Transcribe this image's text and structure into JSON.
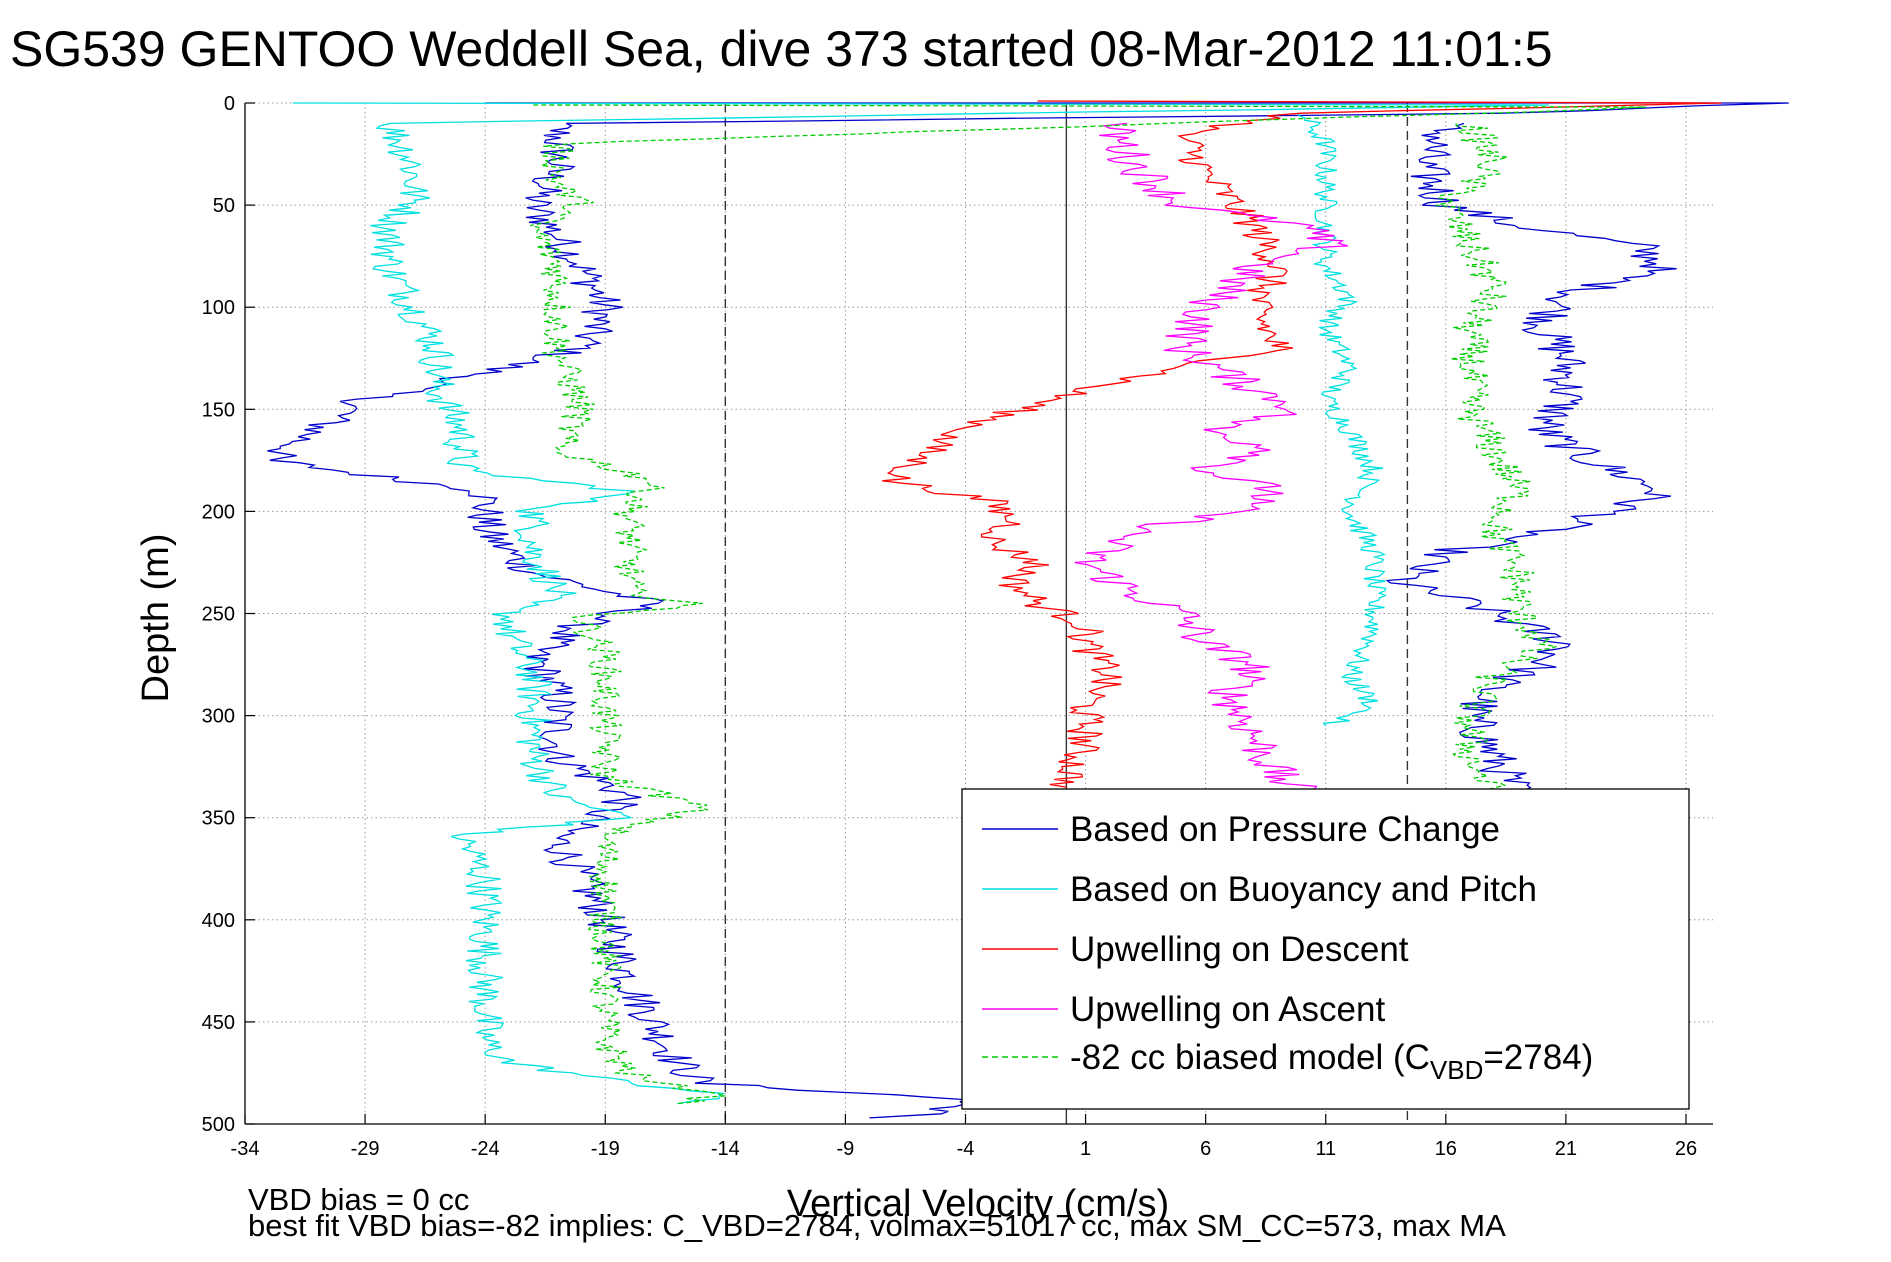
{
  "chart_data": {
    "type": "line",
    "title": "SG539 GENTOO Weddell Sea, dive 373 started 08-Mar-2012 11:01:5",
    "xlabel": "Vertical Velocity (cm/s)",
    "ylabel": "Depth (m)",
    "xlim": [
      -34,
      27
    ],
    "ylim": [
      0,
      500
    ],
    "y_reversed": true,
    "grid": true,
    "xticks": [
      -34,
      -29,
      -24,
      -19,
      -14,
      -9,
      -4,
      1,
      6,
      11,
      16,
      21,
      26
    ],
    "yticks": [
      0,
      50,
      100,
      150,
      200,
      250,
      300,
      350,
      400,
      450,
      500
    ],
    "reference_lines": {
      "solid_x": [
        0.2
      ],
      "dashed_x": [
        -14,
        14.4
      ]
    },
    "notes": [
      "VBD bias = 0 cc",
      "best fit VBD bias=-82 implies: C_VBD=2784, volmax=51017 cc, max SM_CC=573, max MA"
    ],
    "legend": {
      "placement": "bottom-right",
      "entries": [
        {
          "label": "Based on Pressure Change",
          "color": "#0000cc",
          "style": "solid"
        },
        {
          "label": "Based on Buoyancy and Pitch",
          "color": "#00e0e0",
          "style": "solid"
        },
        {
          "label": "Upwelling on Descent",
          "color": "#ff0000",
          "style": "solid"
        },
        {
          "label": "Upwelling on Ascent",
          "color": "#ff00ff",
          "style": "solid"
        },
        {
          "label": "-82 cc biased model (C",
          "sub": "VBD",
          "suffix": "=2784)",
          "color": "#00cc00",
          "style": "dashed"
        }
      ]
    },
    "series": [
      {
        "color": "#0000cc",
        "style": "solid",
        "noise": 0.9,
        "points": [
          [
            -24,
            0
          ],
          [
            30,
            0
          ],
          [
            18,
            5
          ],
          [
            -21,
            10
          ],
          [
            -21,
            30
          ],
          [
            -22,
            50
          ],
          [
            -20,
            80
          ],
          [
            -19,
            100
          ],
          [
            -20,
            120
          ],
          [
            -25,
            135
          ],
          [
            -29,
            145
          ],
          [
            -31,
            160
          ],
          [
            -33,
            175
          ],
          [
            -29,
            182
          ],
          [
            -24,
            190
          ],
          [
            -24,
            210
          ],
          [
            -22,
            230
          ],
          [
            -17,
            245
          ],
          [
            -20,
            255
          ],
          [
            -22,
            270
          ],
          [
            -21,
            290
          ],
          [
            -21,
            320
          ],
          [
            -18,
            340
          ],
          [
            -21,
            360
          ],
          [
            -20,
            380
          ],
          [
            -19,
            400
          ],
          [
            -18,
            430
          ],
          [
            -17,
            450
          ],
          [
            -16,
            470
          ],
          [
            -15,
            480
          ],
          [
            -4,
            488
          ],
          [
            -5,
            495
          ],
          [
            -8,
            497
          ]
        ]
      },
      {
        "color": "#0000cc",
        "style": "solid",
        "noise": 1.0,
        "points": [
          [
            16,
            10
          ],
          [
            15,
            30
          ],
          [
            16,
            50
          ],
          [
            19,
            60
          ],
          [
            24,
            70
          ],
          [
            25,
            80
          ],
          [
            21,
            95
          ],
          [
            20,
            110
          ],
          [
            21,
            125
          ],
          [
            21,
            145
          ],
          [
            20,
            160
          ],
          [
            22,
            175
          ],
          [
            25,
            190
          ],
          [
            23,
            200
          ],
          [
            20,
            210
          ],
          [
            16,
            220
          ],
          [
            14,
            235
          ],
          [
            17,
            245
          ],
          [
            19,
            255
          ],
          [
            21,
            265
          ],
          [
            20,
            275
          ],
          [
            18,
            285
          ],
          [
            17,
            300
          ],
          [
            18,
            320
          ],
          [
            19,
            340
          ]
        ]
      },
      {
        "color": "#00e0e0",
        "style": "solid",
        "noise": 0.8,
        "points": [
          [
            -32,
            0
          ],
          [
            20,
            1
          ],
          [
            -28,
            10
          ],
          [
            -27,
            30
          ],
          [
            -27,
            50
          ],
          [
            -28,
            60
          ],
          [
            -28,
            80
          ],
          [
            -27,
            100
          ],
          [
            -26,
            120
          ],
          [
            -26,
            140
          ],
          [
            -25,
            160
          ],
          [
            -25,
            180
          ],
          [
            -18,
            190
          ],
          [
            -22,
            200
          ],
          [
            -22,
            220
          ],
          [
            -21,
            240
          ],
          [
            -23,
            248
          ],
          [
            -23,
            260
          ],
          [
            -22,
            280
          ],
          [
            -22,
            300
          ],
          [
            -22,
            320
          ],
          [
            -21,
            340
          ],
          [
            -18,
            350
          ],
          [
            -25,
            358
          ],
          [
            -24,
            380
          ],
          [
            -24,
            400
          ],
          [
            -24,
            420
          ],
          [
            -24,
            440
          ],
          [
            -24,
            460
          ],
          [
            -23,
            470
          ],
          [
            -18,
            480
          ],
          [
            -14,
            485
          ],
          [
            -16,
            490
          ]
        ]
      },
      {
        "color": "#00e0e0",
        "style": "solid",
        "noise": 0.5,
        "points": [
          [
            10,
            5
          ],
          [
            11,
            20
          ],
          [
            11,
            40
          ],
          [
            11,
            60
          ],
          [
            11,
            80
          ],
          [
            12,
            95
          ],
          [
            11,
            110
          ],
          [
            12,
            130
          ],
          [
            11,
            145
          ],
          [
            12,
            160
          ],
          [
            13,
            180
          ],
          [
            12,
            200
          ],
          [
            13,
            220
          ],
          [
            13,
            240
          ],
          [
            13,
            260
          ],
          [
            12,
            280
          ],
          [
            13,
            295
          ],
          [
            11,
            305
          ]
        ]
      },
      {
        "color": "#ff0000",
        "style": "solid",
        "noise": 0.8,
        "points": [
          [
            -1,
            -1
          ],
          [
            27,
            0
          ],
          [
            10,
            5
          ],
          [
            5,
            15
          ],
          [
            6,
            35
          ],
          [
            8,
            60
          ],
          [
            9,
            80
          ],
          [
            8,
            100
          ],
          [
            9,
            120
          ],
          [
            5,
            130
          ],
          [
            1,
            140
          ],
          [
            -3,
            155
          ],
          [
            -5,
            165
          ],
          [
            -6,
            175
          ],
          [
            -7,
            185
          ],
          [
            -5,
            190
          ],
          [
            -3,
            195
          ],
          [
            -2,
            205
          ],
          [
            -3,
            215
          ],
          [
            -1,
            225
          ],
          [
            -2,
            235
          ],
          [
            -1,
            245
          ],
          [
            1,
            255
          ],
          [
            1,
            265
          ],
          [
            2,
            280
          ],
          [
            1,
            295
          ],
          [
            1,
            310
          ],
          [
            0.5,
            325
          ],
          [
            0.2,
            335
          ]
        ]
      },
      {
        "color": "#ff00ff",
        "style": "solid",
        "noise": 1.0,
        "points": [
          [
            2,
            10
          ],
          [
            3,
            30
          ],
          [
            5,
            50
          ],
          [
            10,
            60
          ],
          [
            11,
            70
          ],
          [
            8,
            80
          ],
          [
            6,
            100
          ],
          [
            5,
            120
          ],
          [
            8,
            140
          ],
          [
            10,
            150
          ],
          [
            6,
            160
          ],
          [
            9,
            170
          ],
          [
            6,
            180
          ],
          [
            9,
            190
          ],
          [
            7,
            200
          ],
          [
            3,
            210
          ],
          [
            1,
            225
          ],
          [
            3,
            240
          ],
          [
            5,
            250
          ],
          [
            6,
            265
          ],
          [
            8,
            275
          ],
          [
            7,
            290
          ],
          [
            8,
            310
          ],
          [
            9,
            330
          ],
          [
            11,
            345
          ]
        ]
      },
      {
        "color": "#00cc00",
        "style": "dashed",
        "noise": 0.7,
        "points": [
          [
            -22,
            1
          ],
          [
            25,
            2
          ],
          [
            -21,
            20
          ],
          [
            -21,
            40
          ],
          [
            -20,
            50
          ],
          [
            -22,
            60
          ],
          [
            -21,
            80
          ],
          [
            -21,
            100
          ],
          [
            -21,
            120
          ],
          [
            -20,
            150
          ],
          [
            -21,
            170
          ],
          [
            -17,
            185
          ],
          [
            -18,
            200
          ],
          [
            -18,
            220
          ],
          [
            -18,
            240
          ],
          [
            -15,
            245
          ],
          [
            -20,
            252
          ],
          [
            -19,
            270
          ],
          [
            -19,
            300
          ],
          [
            -19,
            330
          ],
          [
            -15,
            345
          ],
          [
            -19,
            358
          ],
          [
            -19,
            380
          ],
          [
            -19,
            400
          ],
          [
            -19,
            420
          ],
          [
            -19,
            440
          ],
          [
            -19,
            460
          ],
          [
            -18,
            475
          ],
          [
            -17,
            480
          ],
          [
            -14,
            485
          ],
          [
            -16,
            490
          ]
        ]
      },
      {
        "color": "#00cc00",
        "style": "dashed",
        "noise": 0.8,
        "points": [
          [
            17,
            10
          ],
          [
            18,
            30
          ],
          [
            16,
            50
          ],
          [
            17,
            70
          ],
          [
            18,
            90
          ],
          [
            17,
            110
          ],
          [
            17,
            130
          ],
          [
            17,
            150
          ],
          [
            18,
            170
          ],
          [
            19,
            190
          ],
          [
            18,
            210
          ],
          [
            19,
            230
          ],
          [
            19,
            250
          ],
          [
            20,
            265
          ],
          [
            18,
            280
          ],
          [
            17,
            300
          ],
          [
            17,
            320
          ],
          [
            18,
            340
          ]
        ]
      }
    ]
  }
}
